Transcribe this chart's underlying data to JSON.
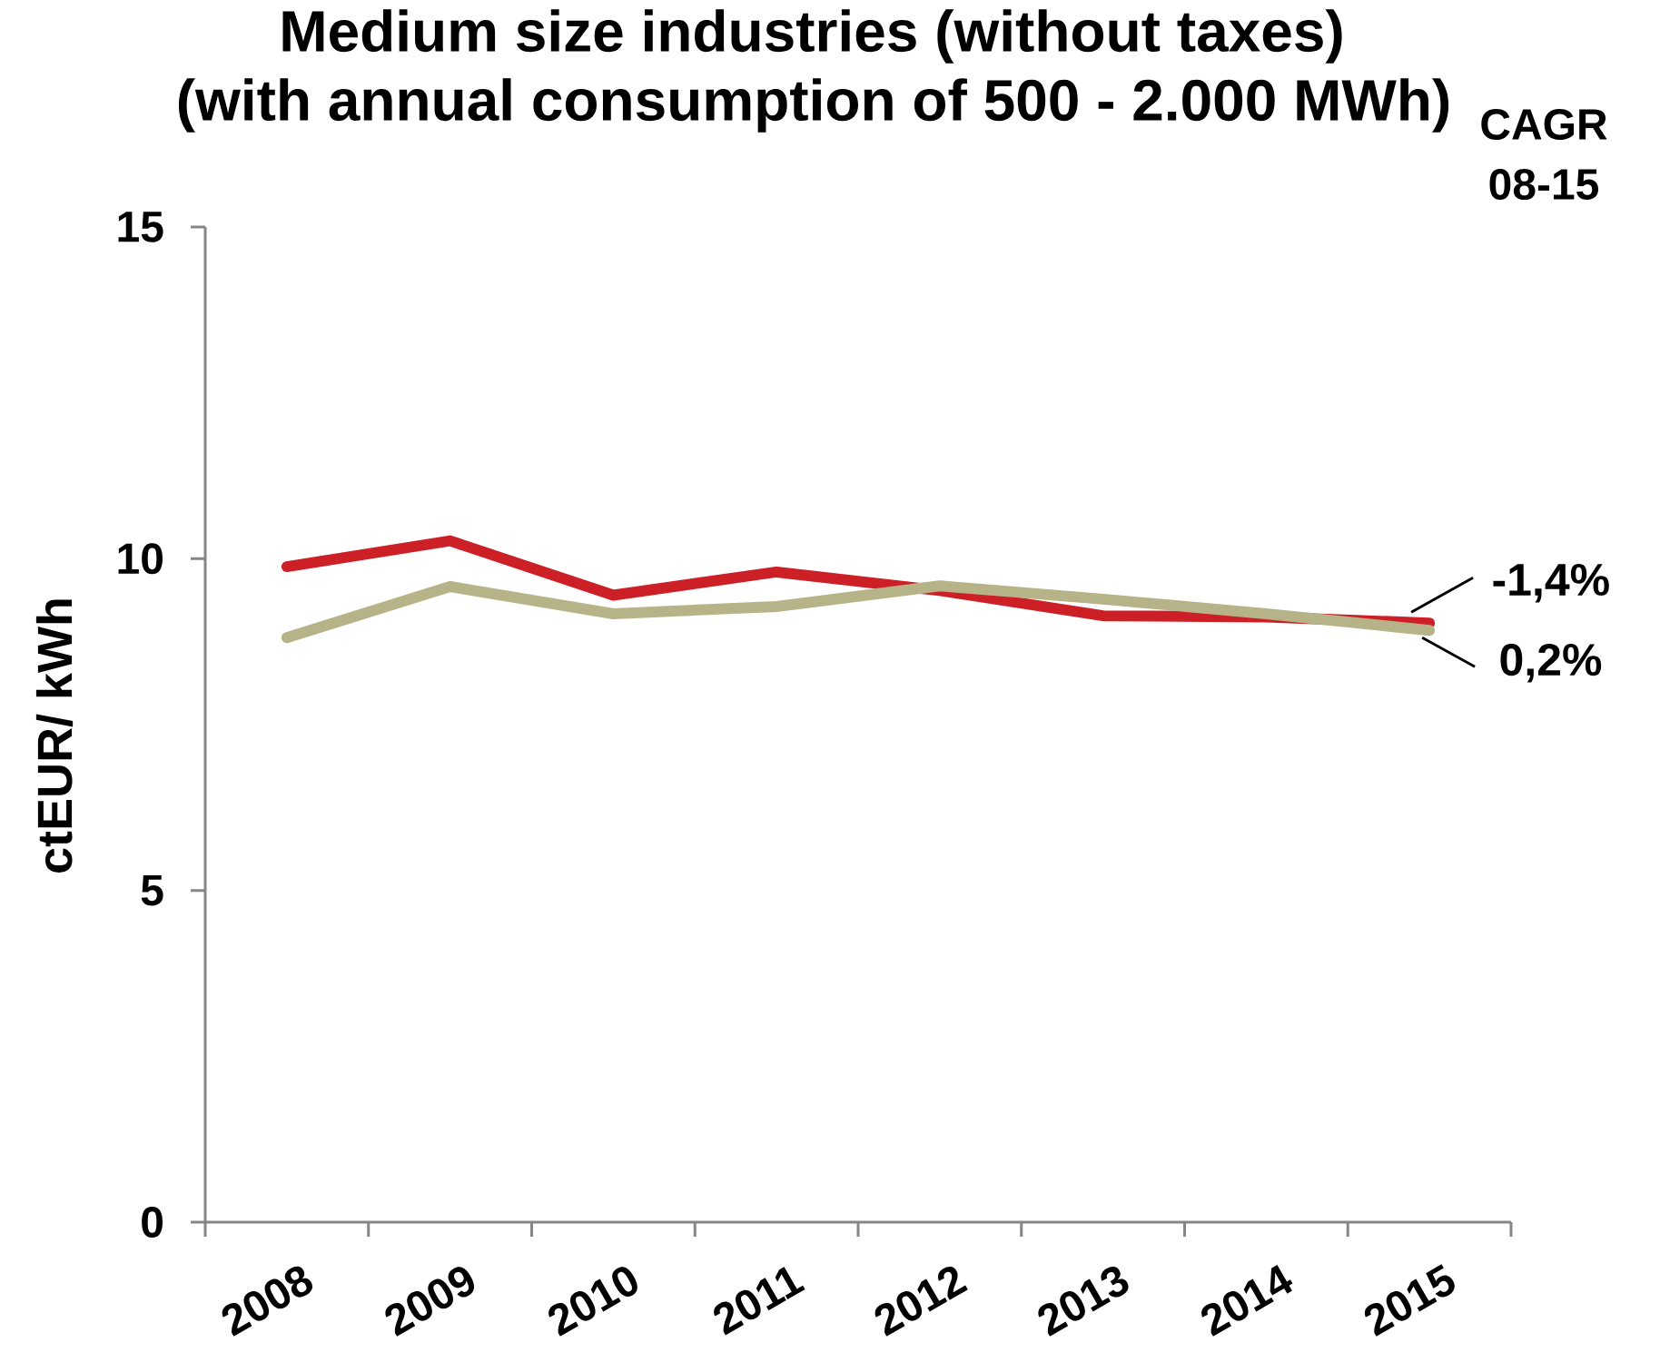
{
  "chart_data": {
    "type": "line",
    "title": "Medium size industries (without taxes)",
    "subtitle": "(with annual consumption of 500 - 2.000 MWh)",
    "ylabel": "ctEUR/ kWh",
    "categories": [
      "2008",
      "2009",
      "2010",
      "2011",
      "2012",
      "2013",
      "2014",
      "2015"
    ],
    "series": [
      {
        "color": "#cc1f26",
        "values": [
          9.88,
          10.27,
          9.45,
          9.8,
          9.52,
          9.14,
          9.12,
          9.03
        ]
      },
      {
        "color": "#b7b388",
        "values": [
          8.81,
          9.58,
          9.17,
          9.28,
          9.59,
          9.39,
          9.17,
          8.92
        ]
      }
    ],
    "ylim": [
      0,
      15
    ],
    "yticks": [
      0,
      5,
      10,
      15
    ],
    "annotations": [
      "CAGR 08-15",
      {
        "text": "-1,4%",
        "x": "2015",
        "y": 9.03
      },
      {
        "text": "0,2%",
        "x": "2015",
        "y": 8.92
      }
    ]
  }
}
